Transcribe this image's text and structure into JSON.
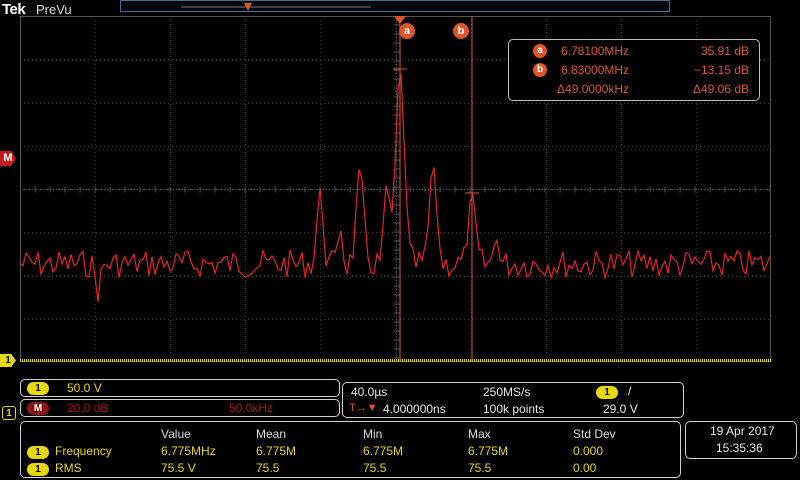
{
  "header": {
    "brand": "Tek",
    "mode": "PreVu"
  },
  "colors": {
    "trace": "#e4232b",
    "cursor": "#e0542a",
    "ch1": "#e6d80a",
    "math": "#c41a1a",
    "grid": "#3a3a3a"
  },
  "markers": {
    "math": "M",
    "ch1": "1",
    "ref": "1"
  },
  "cursors": {
    "a": {
      "label": "a",
      "freq": "6.78100MHz",
      "value": "35.91 dB"
    },
    "b": {
      "label": "b",
      "freq": "6.83000MHz",
      "value": "−13.15 dB"
    },
    "delta": {
      "freq": "Δ49.0000kHz",
      "value": "Δ49.06 dB"
    }
  },
  "ch1_panel": {
    "chip": "1",
    "scale": "50.0 V"
  },
  "math_panel": {
    "chip": "M",
    "scale": "20.0 dB",
    "span": "50.0kHz"
  },
  "timebase": {
    "horizontal": "40.0µs",
    "sample_rate": "250MS/s",
    "trigger_chip": "1",
    "trigger_slope": "/",
    "delay": "4.000000ns",
    "trigger_icon": "T→▼",
    "record_length": "100k points",
    "trigger_level": "29.0 V"
  },
  "measurements": {
    "headers": [
      "Value",
      "Mean",
      "Min",
      "Max",
      "Std Dev"
    ],
    "rows": [
      {
        "chip": "1",
        "name": "Frequency",
        "values": [
          "6.775MHz",
          "6.775M",
          "6.775M",
          "6.775M",
          "0.000"
        ]
      },
      {
        "chip": "1",
        "name": "RMS",
        "values": [
          "75.5 V",
          "75.5",
          "75.5",
          "75.5",
          "0.00"
        ]
      }
    ]
  },
  "datetime": {
    "date": "19 Apr  2017",
    "time": "15:35:36"
  }
}
